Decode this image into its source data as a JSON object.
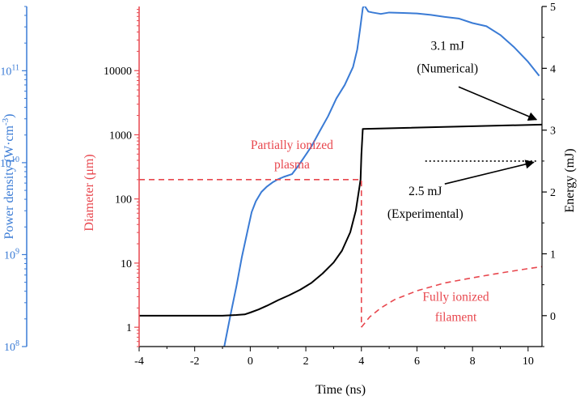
{
  "chart_data": {
    "type": "line",
    "xlabel": "Time (ns)",
    "xlim": [
      -4,
      10.5
    ],
    "x_ticks": [
      -4,
      -2,
      0,
      2,
      4,
      6,
      8,
      10
    ],
    "axes": {
      "power": {
        "label_main": "Power density (W·cm",
        "label_sup": "-3",
        "label_close": ")",
        "scale": "log",
        "range": [
          100000000.0,
          500000000000.0
        ],
        "ticks": [
          {
            "value": 100000000.0,
            "base": "10",
            "exp": "8"
          },
          {
            "value": 1000000000.0,
            "base": "10",
            "exp": "9"
          },
          {
            "value": 10000000000.0,
            "base": "10",
            "exp": "10"
          },
          {
            "value": 100000000000.0,
            "base": "10",
            "exp": "11"
          }
        ],
        "color": "#3a7bd5"
      },
      "diameter": {
        "label": "Diameter (μm)",
        "scale": "log",
        "range": [
          0.5,
          100000
        ],
        "ticks": [
          {
            "value": 1,
            "label": "1"
          },
          {
            "value": 10,
            "label": "10"
          },
          {
            "value": 100,
            "label": "100"
          },
          {
            "value": 1000,
            "label": "1000"
          },
          {
            "value": 10000,
            "label": "10000"
          }
        ],
        "color": "#e8474e"
      },
      "energy": {
        "label": "Energy (mJ)",
        "scale": "linear",
        "range": [
          -0.5,
          5
        ],
        "ticks": [
          0,
          1,
          2,
          3,
          4,
          5
        ],
        "color": "#000000"
      }
    },
    "series": [
      {
        "axis": "power",
        "color": "#3a7bd5",
        "style": "solid",
        "x": [
          -0.95,
          -0.7,
          -0.5,
          -0.3,
          -0.1,
          0.05,
          0.2,
          0.4,
          0.6,
          0.8,
          1.0,
          1.2,
          1.5,
          1.7,
          1.9,
          2.2,
          2.5,
          2.8,
          3.1,
          3.4,
          3.7,
          3.85,
          3.95,
          4.05,
          4.1,
          4.15,
          4.25,
          4.4,
          4.7,
          5.0,
          5.5,
          6.0,
          6.5,
          7.0,
          7.5,
          8.0,
          8.5,
          9.0,
          9.5,
          10.0,
          10.4
        ],
        "y": [
          95000000.0,
          230000000.0,
          450000000.0,
          950000000.0,
          1800000000.0,
          2900000000.0,
          3800000000.0,
          4800000000.0,
          5500000000.0,
          6100000000.0,
          6600000000.0,
          7000000000.0,
          7500000000.0,
          9000000000.0,
          11000000000.0,
          15000000000.0,
          22000000000.0,
          32000000000.0,
          50000000000.0,
          70000000000.0,
          110000000000.0,
          170000000000.0,
          280000000000.0,
          480000000000.0,
          520000000000.0,
          490000000000.0,
          440000000000.0,
          430000000000.0,
          415000000000.0,
          430000000000.0,
          425000000000.0,
          420000000000.0,
          405000000000.0,
          385000000000.0,
          370000000000.0,
          330000000000.0,
          305000000000.0,
          245000000000.0,
          180000000000.0,
          125000000000.0,
          88000000000.0
        ]
      },
      {
        "axis": "energy",
        "color": "#000000",
        "style": "solid",
        "x": [
          -4,
          -1.0,
          -0.5,
          -0.2,
          0.0,
          0.3,
          0.6,
          1.0,
          1.4,
          1.8,
          2.2,
          2.6,
          3.0,
          3.3,
          3.6,
          3.8,
          3.92,
          3.97,
          4.0,
          4.05,
          10.5
        ],
        "y": [
          0.0,
          0.0,
          0.01,
          0.02,
          0.05,
          0.1,
          0.16,
          0.25,
          0.33,
          0.42,
          0.53,
          0.68,
          0.86,
          1.05,
          1.35,
          1.7,
          2.05,
          2.2,
          2.6,
          3.02,
          3.09
        ]
      },
      {
        "axis": "energy",
        "color": "#000000",
        "style": "dotted",
        "x": [
          6.3,
          10.3
        ],
        "y": [
          2.5,
          2.5
        ]
      },
      {
        "axis": "diameter",
        "color": "#e8474e",
        "style": "dashed",
        "x": [
          -4,
          4.0,
          4.0
        ],
        "y": [
          200,
          200,
          1
        ]
      },
      {
        "axis": "diameter",
        "color": "#e8474e",
        "style": "dashed",
        "x": [
          4.0,
          4.3,
          4.7,
          5.2,
          6.0,
          7.0,
          8.0,
          9.0,
          10.0,
          10.5
        ],
        "y": [
          1,
          1.45,
          2.0,
          2.7,
          3.7,
          4.9,
          5.9,
          7.0,
          8.2,
          8.8
        ]
      }
    ],
    "annotations": [
      {
        "text": "Partially ionized",
        "color": "#e8474e",
        "x": 1.5,
        "axis": "diameter",
        "y": 600
      },
      {
        "text": "plasma",
        "color": "#e8474e",
        "x": 1.5,
        "axis": "diameter",
        "y": 300
      },
      {
        "text": "Fully ionized",
        "color": "#e8474e",
        "x": 7.4,
        "axis": "diameter",
        "y": 2.6
      },
      {
        "text": "filament",
        "color": "#e8474e",
        "x": 7.4,
        "axis": "diameter",
        "y": 1.25
      },
      {
        "text": "3.1 mJ",
        "color": "#000000",
        "x": 7.1,
        "axis": "energy",
        "y": 4.3
      },
      {
        "text": "(Numerical)",
        "color": "#000000",
        "x": 7.1,
        "axis": "energy",
        "y": 3.93
      },
      {
        "text": "2.5 mJ",
        "color": "#000000",
        "x": 6.3,
        "axis": "energy",
        "y": 1.95
      },
      {
        "text": "(Experimental)",
        "color": "#000000",
        "x": 6.3,
        "axis": "energy",
        "y": 1.58
      }
    ],
    "arrows": [
      {
        "from_x": 7.5,
        "from_y": 3.7,
        "to_x": 10.3,
        "to_y": 3.17,
        "axis": "energy"
      },
      {
        "from_x": 7.0,
        "from_y": 2.13,
        "to_x": 10.2,
        "to_y": 2.48,
        "axis": "energy"
      }
    ]
  }
}
